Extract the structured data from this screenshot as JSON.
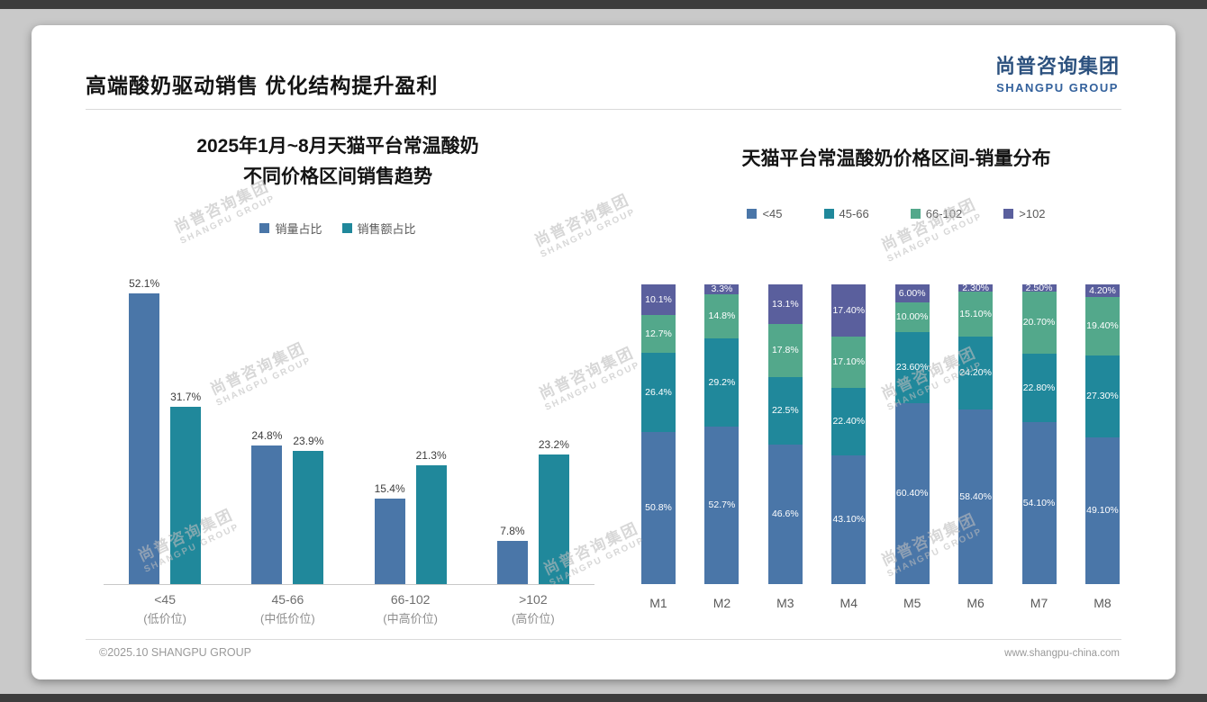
{
  "page": {
    "title": "高端酸奶驱动销售 优化结构提升盈利",
    "footer_left": "©2025.10 SHANGPU GROUP",
    "footer_right": "www.shangpu-china.com"
  },
  "logo": {
    "cn": "尚普咨询集团",
    "en": "SHANGPU GROUP"
  },
  "watermark": {
    "line1": "尚普咨询集团",
    "line2": "SHANGPU GROUP"
  },
  "chart_data": [
    {
      "type": "bar",
      "title_lines": [
        "2025年1月~8月天猫平台常温酸奶",
        "不同价格区间销售趋势"
      ],
      "categories": [
        "<45",
        "45-66",
        "66-102",
        ">102"
      ],
      "category_sublabels": [
        "(低价位)",
        "(中低价位)",
        "(中高价位)",
        "(高价位)"
      ],
      "legend_position": "top",
      "grid": false,
      "ylim": [
        0,
        55
      ],
      "series": [
        {
          "name": "销量占比",
          "color": "#4a76a8",
          "values": [
            52.1,
            24.8,
            15.4,
            7.8
          ],
          "labels": [
            "52.1%",
            "24.8%",
            "15.4%",
            "7.8%"
          ]
        },
        {
          "name": "销售额占比",
          "color": "#20889b",
          "values": [
            31.7,
            23.9,
            21.3,
            23.2
          ],
          "labels": [
            "31.7%",
            "23.9%",
            "21.3%",
            "23.2%"
          ]
        }
      ]
    },
    {
      "type": "stacked-bar",
      "title": "天猫平台常温酸奶价格区间-销量分布",
      "categories": [
        "M1",
        "M2",
        "M3",
        "M4",
        "M5",
        "M6",
        "M7",
        "M8"
      ],
      "legend_position": "top",
      "grid": false,
      "ylim": [
        0,
        100
      ],
      "series": [
        {
          "name": "<45",
          "color": "#4a76a8",
          "values": [
            50.8,
            52.7,
            46.6,
            43.1,
            60.4,
            58.4,
            54.1,
            49.1
          ],
          "labels": [
            "50.8%",
            "52.7%",
            "46.6%",
            "43.10%",
            "60.40%",
            "58.40%",
            "54.10%",
            "49.10%"
          ]
        },
        {
          "name": "45-66",
          "color": "#20889b",
          "values": [
            26.4,
            29.2,
            22.5,
            22.4,
            23.6,
            24.2,
            22.8,
            27.3
          ],
          "labels": [
            "26.4%",
            "29.2%",
            "22.5%",
            "22.40%",
            "23.60%",
            "24.20%",
            "22.80%",
            "27.30%"
          ]
        },
        {
          "name": "66-102",
          "color": "#53a88b",
          "values": [
            12.7,
            14.8,
            17.8,
            17.1,
            10.0,
            15.1,
            20.7,
            19.4
          ],
          "labels": [
            "12.7%",
            "14.8%",
            "17.8%",
            "17.10%",
            "10.00%",
            "15.10%",
            "20.70%",
            "19.40%"
          ]
        },
        {
          "name": ">102",
          "color": "#5a5f9d",
          "values": [
            10.1,
            3.3,
            13.1,
            17.4,
            6.0,
            2.3,
            2.5,
            4.2
          ],
          "labels": [
            "10.1%",
            "3.3%",
            "13.1%",
            "17.40%",
            "6.00%",
            "2.30%",
            "2.50%",
            "4.20%"
          ]
        }
      ]
    }
  ]
}
